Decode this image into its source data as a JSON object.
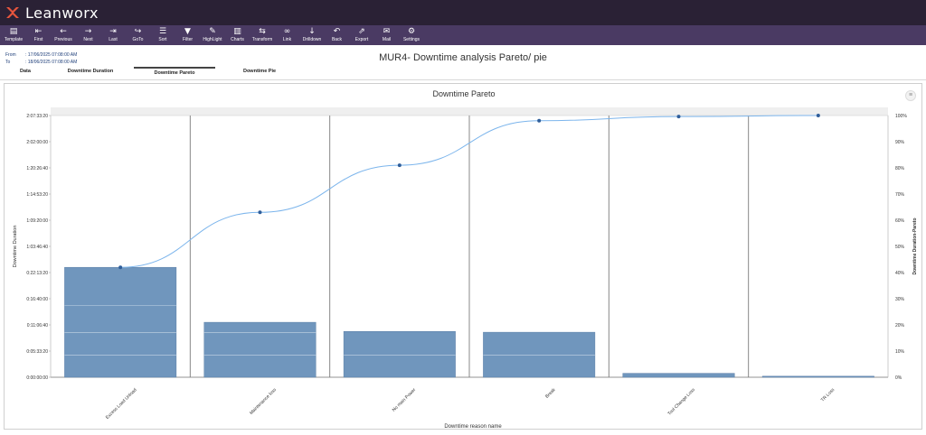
{
  "app": {
    "name": "Leanworx"
  },
  "toolbar": {
    "buttons": [
      {
        "label": "Template",
        "icon": "template-icon",
        "glyph": "▤"
      },
      {
        "label": "First",
        "icon": "first-icon",
        "glyph": "⇤"
      },
      {
        "label": "Previous",
        "icon": "previous-icon",
        "glyph": "←"
      },
      {
        "label": "Next",
        "icon": "next-icon",
        "glyph": "→"
      },
      {
        "label": "Last",
        "icon": "last-icon",
        "glyph": "⇥"
      },
      {
        "label": "GoTo",
        "icon": "goto-icon",
        "glyph": "↪"
      },
      {
        "label": "Sort",
        "icon": "sort-icon",
        "glyph": "☰"
      },
      {
        "label": "Filter",
        "icon": "filter-icon",
        "glyph": "▼"
      },
      {
        "label": "HighLight",
        "icon": "highlight-icon",
        "glyph": "✎"
      },
      {
        "label": "Charts",
        "icon": "charts-icon",
        "glyph": "▥"
      },
      {
        "label": "Transform",
        "icon": "transform-icon",
        "glyph": "⇆"
      },
      {
        "label": "Link",
        "icon": "link-icon",
        "glyph": "∞"
      },
      {
        "label": "Drilldown",
        "icon": "drilldown-icon",
        "glyph": "↓"
      },
      {
        "label": "Back",
        "icon": "back-icon",
        "glyph": "↶"
      },
      {
        "label": "Export",
        "icon": "export-icon",
        "glyph": "⇗"
      },
      {
        "label": "Mail",
        "icon": "mail-icon",
        "glyph": "✉"
      },
      {
        "label": "Settings",
        "icon": "settings-icon",
        "glyph": "⚙"
      }
    ]
  },
  "filters": {
    "from_label": "From",
    "from_value": ": 17/06/2025 07:08:00 AM",
    "to_label": "To",
    "to_value": ": 18/06/2025 07:08:00 AM"
  },
  "page": {
    "title": "MUR4- Downtime analysis Pareto/ pie"
  },
  "tabs": [
    "Data",
    "Downtime Duration",
    "Downtime Pareto",
    "Downtime Pie"
  ],
  "active_tab": "Downtime Pareto",
  "colors": {
    "bar": "#7096bd",
    "line": "#7cb5ec",
    "point": "#2f5e9a",
    "topbar": "#2a2135",
    "toolbar": "#4a3a63"
  },
  "chart_data": {
    "type": "bar",
    "title": "Downtime Pareto",
    "xlabel": "Downtime reason name",
    "ylabel": "Downtime Duration",
    "y2label": "Downtime Duration-Pareto",
    "categories": [
      "Excess Load Unload",
      "Maintenance loss",
      "No main Power",
      "Break",
      "Tool Change Loss",
      "TR Loss"
    ],
    "yticks": [
      "0:00:00:00",
      "0:05:33:20",
      "0:11:06:40",
      "0:16:40:00",
      "0:22:13:20",
      "1:03:46:40",
      "1:09:20:00",
      "1:14:53:20",
      "1:20:26:40",
      "2:02:00:00",
      "2:07:33:20"
    ],
    "y2ticks": [
      "0%",
      "10%",
      "20%",
      "30%",
      "40%",
      "50%",
      "60%",
      "70%",
      "80%",
      "90%",
      "100%"
    ],
    "series": [
      {
        "name": "Downtime Duration",
        "type": "bar",
        "values": [
          0.42,
          0.21,
          0.175,
          0.172,
          0.015,
          0.004
        ]
      },
      {
        "name": "Downtime Duration-Pareto",
        "type": "line",
        "values": [
          42,
          63,
          81,
          98,
          99.6,
          100
        ]
      }
    ]
  }
}
